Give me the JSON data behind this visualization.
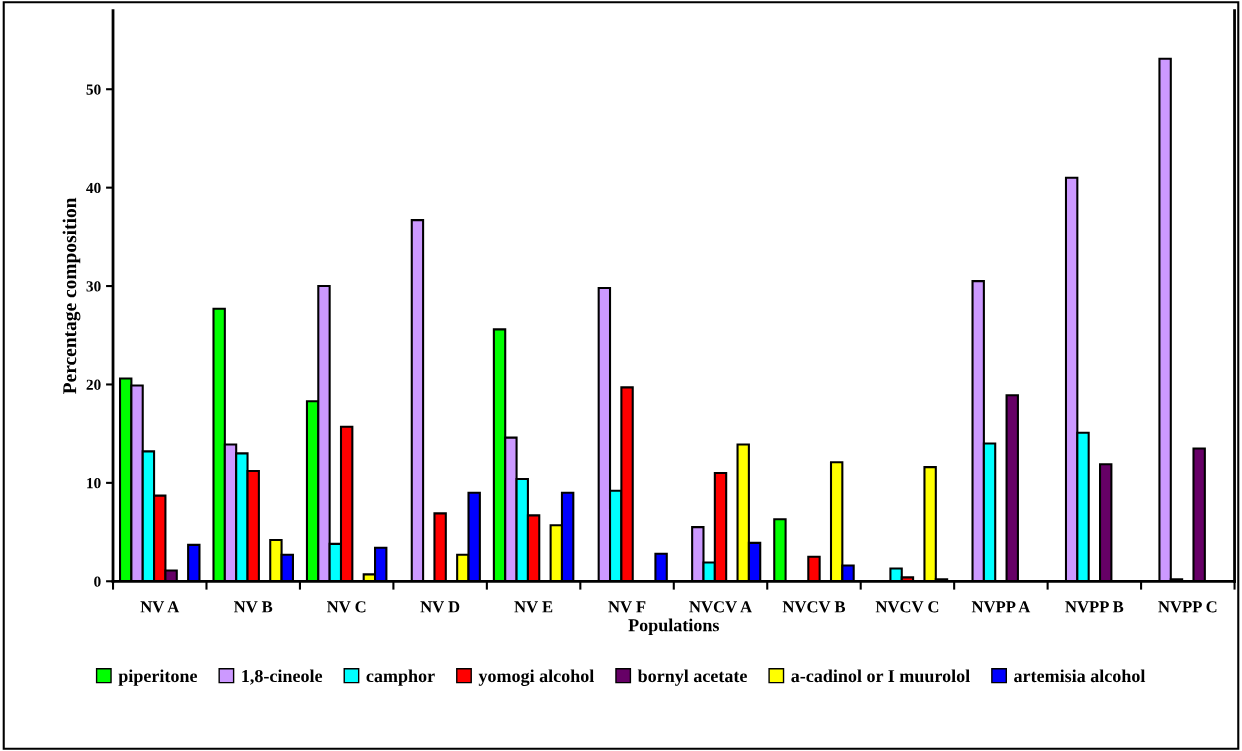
{
  "chart_data": {
    "type": "bar",
    "xlabel": "Populations",
    "ylabel": "Percentage composition",
    "categories": [
      "NV A",
      "NV B",
      "NV C",
      "NV D",
      "NV E",
      "NV F",
      "NVCV A",
      "NVCV B",
      "NVCV C",
      "NVPP A",
      "NVPP B",
      "NVPP C"
    ],
    "series": [
      {
        "name": "piperitone",
        "color": "#00ff00",
        "values": [
          20.6,
          27.7,
          18.3,
          null,
          25.6,
          null,
          null,
          6.3,
          null,
          null,
          null,
          null
        ]
      },
      {
        "name": "1,8-cineole",
        "color": "#cc99ff",
        "values": [
          19.9,
          13.9,
          30.0,
          36.7,
          14.6,
          29.8,
          5.5,
          null,
          null,
          30.5,
          41.0,
          53.1
        ]
      },
      {
        "name": "camphor",
        "color": "#00ffff",
        "values": [
          13.2,
          13.0,
          3.8,
          null,
          10.4,
          9.2,
          1.9,
          null,
          1.3,
          14.0,
          15.1,
          0.2
        ]
      },
      {
        "name": "yomogi alcohol",
        "color": "#ff0000",
        "values": [
          8.7,
          11.2,
          15.7,
          6.9,
          6.7,
          19.7,
          11.0,
          2.5,
          0.4,
          null,
          null,
          null
        ]
      },
      {
        "name": "bornyl acetate",
        "color": "#660066",
        "values": [
          1.1,
          null,
          null,
          null,
          null,
          null,
          null,
          null,
          null,
          18.9,
          11.9,
          13.5
        ]
      },
      {
        "name": "a-cadinol or I muurolol",
        "color": "#ffff00",
        "values": [
          null,
          4.2,
          0.7,
          2.7,
          5.7,
          null,
          13.9,
          12.1,
          11.6,
          null,
          null,
          null
        ]
      },
      {
        "name": "artemisia alcohol",
        "color": "#0000ff",
        "values": [
          3.7,
          2.7,
          3.4,
          9.0,
          9.0,
          2.8,
          3.9,
          1.6,
          0.2,
          null,
          null,
          null
        ]
      }
    ],
    "ylim": [
      0,
      58
    ],
    "yticks": [
      0,
      10,
      20,
      30,
      40,
      50
    ],
    "grid": false,
    "legend": "bottom"
  }
}
